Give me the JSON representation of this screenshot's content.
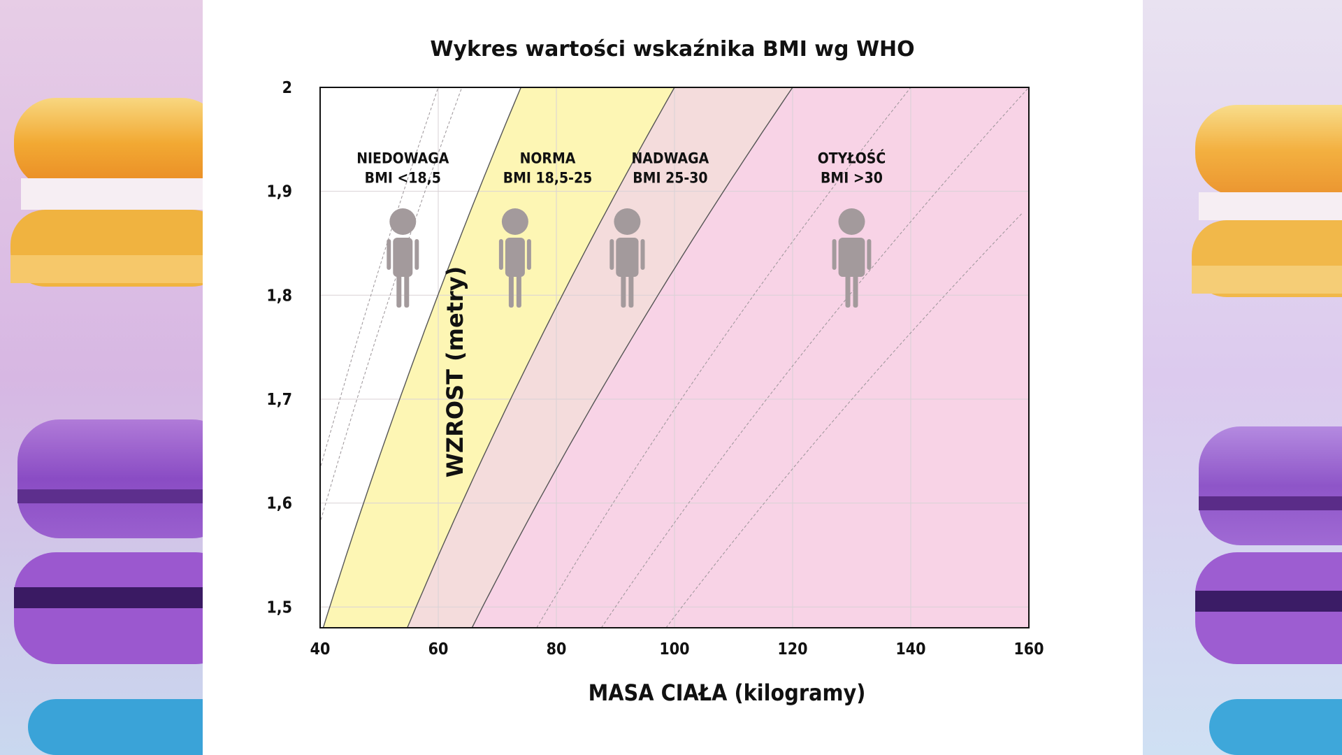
{
  "chart_data": {
    "type": "area",
    "title": "Wykres wartości wskaźnika BMI wg WHO",
    "xlabel": "MASA CIAŁA (kilogramy)",
    "ylabel": "WZROST (metry)",
    "xlim": [
      40,
      160
    ],
    "ylim": [
      1.48,
      2.0
    ],
    "x_ticks": [
      40,
      60,
      80,
      100,
      120,
      140,
      160
    ],
    "x_tick_labels": [
      "40",
      "60",
      "80",
      "100",
      "120",
      "140",
      "160"
    ],
    "y_ticks": [
      1.5,
      1.6,
      1.7,
      1.8,
      1.9,
      2.0
    ],
    "y_tick_labels": [
      "1,5",
      "1,6",
      "1,7",
      "1,8",
      "1,9",
      "2"
    ],
    "grid": true,
    "boundaries_bmi": [
      18.5,
      25,
      30
    ],
    "guide_lines_bmi": [
      15,
      16,
      35,
      40,
      45
    ],
    "zones": [
      {
        "name": "NIEDOWAGA",
        "range": "BMI <18,5",
        "bmi_min": 0,
        "bmi_max": 18.5,
        "color": "#ffffff",
        "figure_x": 54
      },
      {
        "name": "NORMA",
        "range": "BMI 18,5-25",
        "bmi_min": 18.5,
        "bmi_max": 25,
        "color": "#fdf6b4",
        "figure_x": 73
      },
      {
        "name": "NADWAGA",
        "range": "BMI 25-30",
        "bmi_min": 25,
        "bmi_max": 30,
        "color": "#f4dcdc",
        "figure_x": 92
      },
      {
        "name": "OTYŁOŚĆ",
        "range": "BMI >30",
        "bmi_min": 30,
        "bmi_max": 200,
        "color": "#f8d3e6",
        "figure_x": 130
      }
    ],
    "zone_label_y": [
      1.9
    ],
    "figure_icon": "person-icon",
    "figure_color": "#a39a9c",
    "frame_color": "#111111",
    "boundary_color": "#555555"
  }
}
